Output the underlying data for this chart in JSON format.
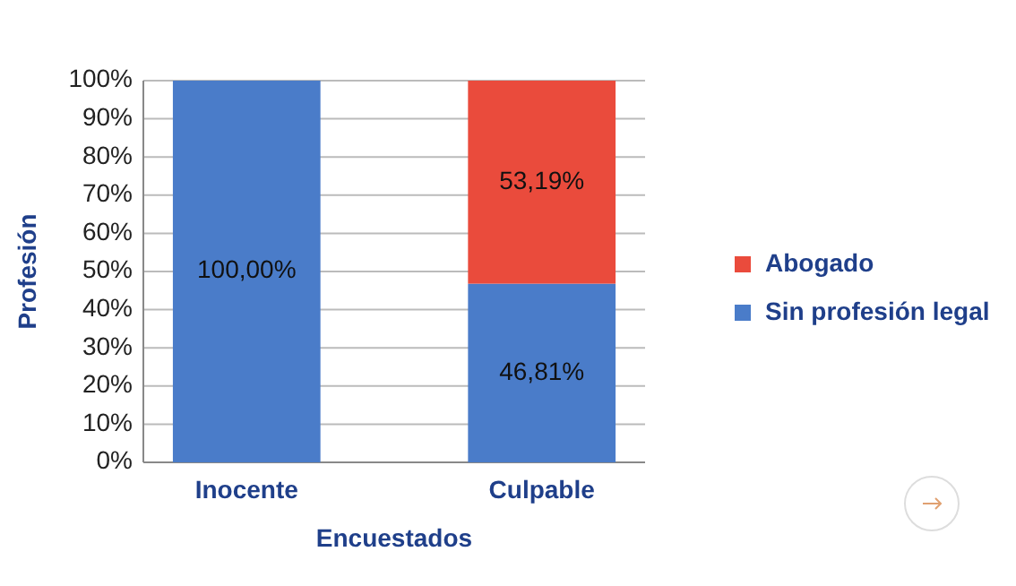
{
  "chart_data": {
    "type": "bar",
    "stacked": true,
    "xlabel": "Encuestados",
    "ylabel": "Profesión",
    "categories": [
      "Inocente",
      "Culpable"
    ],
    "series": [
      {
        "name": "Sin profesión legal",
        "color": "#4a7cc9",
        "values": [
          100,
          46.81
        ],
        "value_labels": [
          "100,00%",
          "46,81%"
        ]
      },
      {
        "name": "Abogado",
        "color": "#ea4b3c",
        "values": [
          0,
          53.19
        ],
        "value_labels": [
          null,
          "53,19%"
        ]
      }
    ],
    "ylim": [
      0,
      100
    ],
    "yticks": [
      {
        "value": 0,
        "label": "0%"
      },
      {
        "value": 10,
        "label": "10%"
      },
      {
        "value": 20,
        "label": "20%"
      },
      {
        "value": 30,
        "label": "30%"
      },
      {
        "value": 40,
        "label": "40%"
      },
      {
        "value": 50,
        "label": "50%"
      },
      {
        "value": 60,
        "label": "60%"
      },
      {
        "value": 70,
        "label": "70%"
      },
      {
        "value": 80,
        "label": "80%"
      },
      {
        "value": 90,
        "label": "90%"
      },
      {
        "value": 100,
        "label": "100%"
      }
    ],
    "grid": "y",
    "legend": "right"
  }
}
